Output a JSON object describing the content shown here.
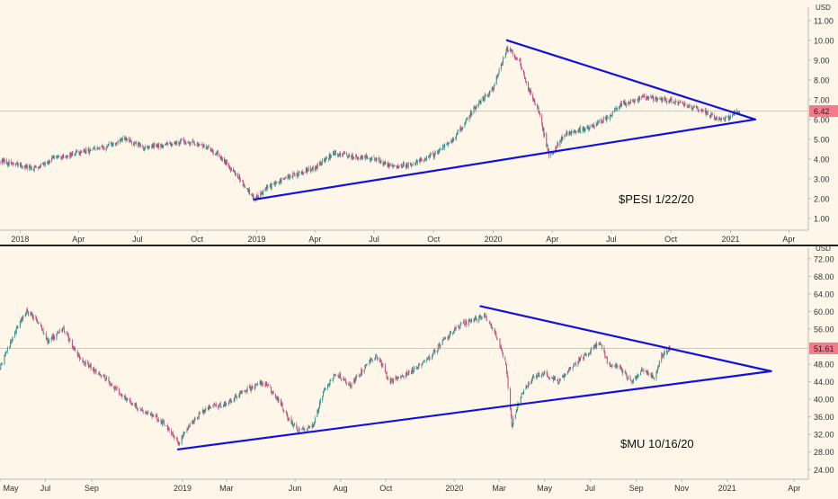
{
  "chart_data": [
    {
      "type": "candlestick",
      "title": "",
      "annotation": "$PESI 1/22/20",
      "currency_label": "USD",
      "last_price_label": "6.42",
      "last_price": 6.42,
      "ylim": [
        0.4,
        11.4
      ],
      "y_ticks": [
        1,
        2,
        3,
        4,
        5,
        6,
        7,
        8,
        9,
        10,
        11
      ],
      "y_tick_labels": [
        "1.00",
        "2.00",
        "3.00",
        "4.00",
        "5.00",
        "6.00",
        "7.00",
        "8.00",
        "9.00",
        "10.00",
        "11.00"
      ],
      "x_range": [
        "2017-12-01",
        "2021-05-01"
      ],
      "x_ticks": [
        {
          "date": "2018-01-01",
          "label": "2018"
        },
        {
          "date": "2018-04-01",
          "label": "Apr"
        },
        {
          "date": "2018-07-01",
          "label": "Jul"
        },
        {
          "date": "2018-10-01",
          "label": "Oct"
        },
        {
          "date": "2019-01-01",
          "label": "2019"
        },
        {
          "date": "2019-04-01",
          "label": "Apr"
        },
        {
          "date": "2019-07-01",
          "label": "Jul"
        },
        {
          "date": "2019-10-01",
          "label": "Oct"
        },
        {
          "date": "2020-01-01",
          "label": "2020"
        },
        {
          "date": "2020-04-01",
          "label": "Apr"
        },
        {
          "date": "2020-07-01",
          "label": "Jul"
        },
        {
          "date": "2020-10-01",
          "label": "Oct"
        },
        {
          "date": "2021-01-01",
          "label": "2021"
        },
        {
          "date": "2021-04-01",
          "label": "Apr"
        }
      ],
      "price_path": [
        [
          "2017-12-01",
          3.9
        ],
        [
          "2018-01-20",
          3.5
        ],
        [
          "2018-02-20",
          4.0
        ],
        [
          "2018-04-01",
          4.3
        ],
        [
          "2018-05-15",
          4.6
        ],
        [
          "2018-06-10",
          5.0
        ],
        [
          "2018-07-10",
          4.6
        ],
        [
          "2018-08-10",
          4.7
        ],
        [
          "2018-09-10",
          4.9
        ],
        [
          "2018-10-01",
          4.8
        ],
        [
          "2018-11-01",
          4.3
        ],
        [
          "2018-12-01",
          3.2
        ],
        [
          "2018-12-28",
          2.0
        ],
        [
          "2019-01-20",
          2.6
        ],
        [
          "2019-02-20",
          3.1
        ],
        [
          "2019-04-01",
          3.6
        ],
        [
          "2019-05-01",
          4.3
        ],
        [
          "2019-06-01",
          4.1
        ],
        [
          "2019-07-01",
          4.0
        ],
        [
          "2019-08-01",
          3.6
        ],
        [
          "2019-09-01",
          3.8
        ],
        [
          "2019-10-01",
          4.2
        ],
        [
          "2019-11-01",
          5.0
        ],
        [
          "2019-12-01",
          6.5
        ],
        [
          "2020-01-01",
          7.6
        ],
        [
          "2020-01-22",
          9.6
        ],
        [
          "2020-02-10",
          9.0
        ],
        [
          "2020-02-25",
          7.5
        ],
        [
          "2020-03-10",
          6.5
        ],
        [
          "2020-03-28",
          4.1
        ],
        [
          "2020-04-20",
          5.3
        ],
        [
          "2020-05-20",
          5.5
        ],
        [
          "2020-06-20",
          6.0
        ],
        [
          "2020-07-20",
          6.8
        ],
        [
          "2020-08-20",
          7.1
        ],
        [
          "2020-09-20",
          7.0
        ],
        [
          "2020-10-20",
          6.8
        ],
        [
          "2020-11-20",
          6.4
        ],
        [
          "2020-12-20",
          5.9
        ],
        [
          "2021-01-05",
          6.3
        ],
        [
          "2021-01-15",
          6.42
        ]
      ],
      "trendlines": [
        {
          "name": "resistance",
          "points": [
            [
              "2020-01-22",
              10.0
            ],
            [
              "2021-02-08",
              6.0
            ]
          ],
          "color": "#1212e0"
        },
        {
          "name": "support",
          "points": [
            [
              "2018-12-28",
              1.95
            ],
            [
              "2021-02-08",
              6.0
            ]
          ],
          "color": "#1212e0"
        }
      ],
      "grid": false
    },
    {
      "type": "candlestick",
      "title": "",
      "annotation": "$MU 10/16/20",
      "currency_label": "USD",
      "last_price_label": "51.61",
      "last_price": 51.61,
      "ylim": [
        21.8,
        73.2
      ],
      "y_ticks": [
        24,
        28,
        32,
        36,
        40,
        44,
        48,
        52,
        56,
        60,
        64,
        68,
        72
      ],
      "y_tick_labels": [
        "24.00",
        "28.00",
        "32.00",
        "36.00",
        "40.00",
        "44.00",
        "48.00",
        "52.00",
        "56.00",
        "60.00",
        "64.00",
        "68.00",
        "72.00"
      ],
      "x_range": [
        "2018-05-01",
        "2021-04-20"
      ],
      "x_ticks": [
        {
          "date": "2018-05-01",
          "label": "May"
        },
        {
          "date": "2018-07-01",
          "label": "Jul"
        },
        {
          "date": "2018-09-01",
          "label": "Sep"
        },
        {
          "date": "2019-01-01",
          "label": "2019"
        },
        {
          "date": "2019-03-01",
          "label": "Mar"
        },
        {
          "date": "2019-06-01",
          "label": "Jun"
        },
        {
          "date": "2019-08-01",
          "label": "Aug"
        },
        {
          "date": "2019-10-01",
          "label": "Oct"
        },
        {
          "date": "2020-01-01",
          "label": "2020"
        },
        {
          "date": "2020-03-01",
          "label": "Mar"
        },
        {
          "date": "2020-05-01",
          "label": "May"
        },
        {
          "date": "2020-07-01",
          "label": "Jul"
        },
        {
          "date": "2020-09-01",
          "label": "Sep"
        },
        {
          "date": "2020-11-01",
          "label": "Nov"
        },
        {
          "date": "2021-01-01",
          "label": "2021"
        },
        {
          "date": "2021-04-01",
          "label": "Apr"
        }
      ],
      "price_path": [
        [
          "2018-05-01",
          47.0
        ],
        [
          "2018-05-20",
          55.0
        ],
        [
          "2018-06-05",
          60.0
        ],
        [
          "2018-06-20",
          58.0
        ],
        [
          "2018-07-05",
          53.0
        ],
        [
          "2018-07-25",
          56.0
        ],
        [
          "2018-08-10",
          51.0
        ],
        [
          "2018-08-25",
          48.0
        ],
        [
          "2018-09-10",
          46.0
        ],
        [
          "2018-09-25",
          44.0
        ],
        [
          "2018-10-10",
          41.0
        ],
        [
          "2018-10-25",
          39.0
        ],
        [
          "2018-11-10",
          37.0
        ],
        [
          "2018-11-25",
          36.0
        ],
        [
          "2018-12-10",
          34.0
        ],
        [
          "2018-12-26",
          30.0
        ],
        [
          "2019-01-10",
          34.0
        ],
        [
          "2019-02-01",
          38.0
        ],
        [
          "2019-03-01",
          39.0
        ],
        [
          "2019-03-25",
          42.0
        ],
        [
          "2019-04-20",
          44.0
        ],
        [
          "2019-05-10",
          40.0
        ],
        [
          "2019-05-25",
          35.0
        ],
        [
          "2019-06-05",
          33.0
        ],
        [
          "2019-06-25",
          34.0
        ],
        [
          "2019-07-10",
          42.0
        ],
        [
          "2019-07-25",
          46.0
        ],
        [
          "2019-08-15",
          43.0
        ],
        [
          "2019-09-05",
          48.0
        ],
        [
          "2019-09-20",
          50.0
        ],
        [
          "2019-10-05",
          44.0
        ],
        [
          "2019-11-01",
          46.0
        ],
        [
          "2019-12-01",
          50.0
        ],
        [
          "2019-12-20",
          54.0
        ],
        [
          "2020-01-10",
          57.0
        ],
        [
          "2020-01-25",
          58.0
        ],
        [
          "2020-02-10",
          59.0
        ],
        [
          "2020-02-25",
          55.0
        ],
        [
          "2020-03-10",
          48.0
        ],
        [
          "2020-03-18",
          34.0
        ],
        [
          "2020-03-28",
          40.0
        ],
        [
          "2020-04-15",
          45.0
        ],
        [
          "2020-05-01",
          46.0
        ],
        [
          "2020-05-20",
          44.0
        ],
        [
          "2020-06-10",
          48.0
        ],
        [
          "2020-07-01",
          51.0
        ],
        [
          "2020-07-15",
          53.0
        ],
        [
          "2020-07-25",
          48.0
        ],
        [
          "2020-08-10",
          47.0
        ],
        [
          "2020-08-25",
          44.0
        ],
        [
          "2020-09-10",
          47.0
        ],
        [
          "2020-09-25",
          45.0
        ],
        [
          "2020-10-05",
          50.0
        ],
        [
          "2020-10-16",
          51.61
        ]
      ],
      "trendlines": [
        {
          "name": "resistance",
          "points": [
            [
              "2020-02-05",
              61.2
            ],
            [
              "2021-03-01",
              46.4
            ]
          ],
          "color": "#1212e0"
        },
        {
          "name": "support",
          "points": [
            [
              "2018-12-26",
              28.6
            ],
            [
              "2021-03-01",
              46.4
            ]
          ],
          "color": "#1212e0"
        }
      ],
      "grid": false
    }
  ]
}
